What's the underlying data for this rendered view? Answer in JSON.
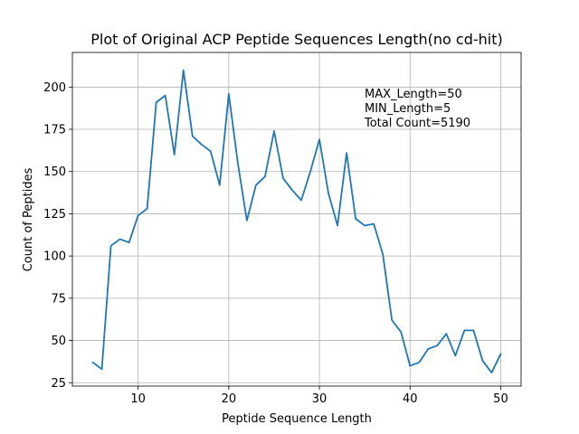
{
  "chart_data": {
    "type": "line",
    "title": "Plot of Original ACP Peptide Sequences Length(no cd-hit)",
    "xlabel": "Peptide Sequence Length",
    "ylabel": "Count of Peptides",
    "xlim": [
      2.75,
      52.25
    ],
    "ylim": [
      23,
      220.5
    ],
    "xticks": [
      10,
      20,
      30,
      40,
      50
    ],
    "yticks": [
      25,
      50,
      75,
      100,
      125,
      150,
      175,
      200
    ],
    "grid": true,
    "series": [
      {
        "color": "#1f77b4",
        "x": [
          5,
          6,
          7,
          8,
          9,
          10,
          11,
          12,
          13,
          14,
          15,
          16,
          17,
          18,
          19,
          20,
          21,
          22,
          23,
          24,
          25,
          26,
          27,
          28,
          29,
          30,
          31,
          32,
          33,
          34,
          35,
          36,
          37,
          38,
          39,
          40,
          41,
          42,
          43,
          44,
          45,
          46,
          47,
          48,
          49,
          50
        ],
        "y": [
          37,
          33,
          106,
          110,
          108,
          124,
          128,
          191,
          195,
          160,
          210,
          171,
          166,
          162,
          142,
          196,
          155,
          121,
          142,
          147,
          174,
          146,
          139,
          133,
          150,
          169,
          137,
          118,
          161,
          122,
          118,
          119,
          101,
          62,
          55,
          35,
          37,
          45,
          47,
          54,
          41,
          56,
          56,
          38,
          31,
          42
        ]
      }
    ],
    "annotations": [
      "MAX_Length=50",
      "MIN_Length=5",
      "Total Count=5190"
    ]
  }
}
